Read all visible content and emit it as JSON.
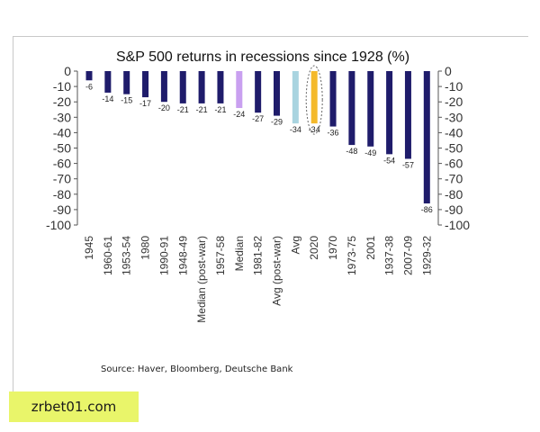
{
  "chart_data": {
    "type": "bar",
    "title": "S&P 500 returns in recessions since 1928 (%)",
    "categories": [
      "1945",
      "1960-61",
      "1953-54",
      "1980",
      "1990-91",
      "1948-49",
      "Median (post-war)",
      "1957-58",
      "Median",
      "1981-82",
      "Avg (post-war)",
      "Avg",
      "2020",
      "1970",
      "1973-75",
      "2001",
      "1937-38",
      "2007-09",
      "1929-32"
    ],
    "values": [
      -6,
      -14,
      -15,
      -17,
      -20,
      -21,
      -21,
      -21,
      -24,
      -27,
      -29,
      -34,
      -34,
      -36,
      -48,
      -49,
      -54,
      -57,
      -86
    ],
    "value_labels": [
      "-6",
      "-14",
      "-15",
      "-17",
      "-20",
      "-21",
      "-21",
      "-21",
      "-24",
      "-27",
      "-29",
      "-34",
      "-34",
      "-36",
      "-48",
      "-49",
      "-54",
      "-57",
      "-86"
    ],
    "ylim": [
      -100,
      0
    ],
    "yticks": [
      "0",
      "-10",
      "-20",
      "-30",
      "-40",
      "-50",
      "-60",
      "-70",
      "-80",
      "-90",
      "-100"
    ],
    "ytick_values": [
      0,
      -10,
      -20,
      -30,
      -40,
      -50,
      -60,
      -70,
      -80,
      -90,
      -100
    ],
    "dual_y_axis": true,
    "grid": false,
    "highlight": "2020",
    "colors": {
      "default": "#1f1c6b",
      "Median": "#c9a0f0",
      "Avg": "#a9d4e0",
      "2020": "#f4b92b"
    }
  },
  "source": "Source: Haver, Bloomberg, Deutsche Bank",
  "watermark": "zrbet01.com"
}
